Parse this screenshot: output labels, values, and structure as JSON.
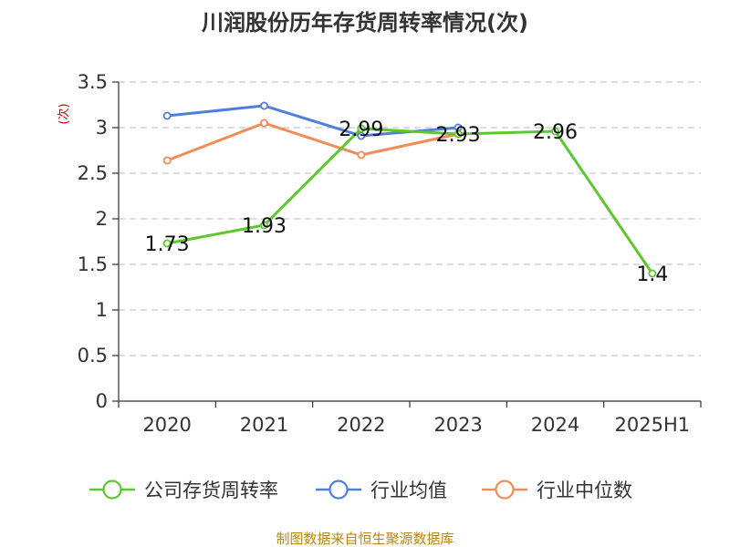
{
  "chart_data": {
    "type": "line",
    "title": "川润股份历年存货周转率情况(次)",
    "ylabel": "(次)",
    "xlabel": "",
    "categories": [
      "2020",
      "2021",
      "2022",
      "2023",
      "2024",
      "2025H1"
    ],
    "ylim": [
      0,
      3.5
    ],
    "yticks": [
      "0",
      "0.5",
      "1",
      "1.5",
      "2",
      "2.5",
      "3",
      "3.5"
    ],
    "grid": "horizontal-dashed",
    "legend_position": "bottom",
    "series": [
      {
        "name": "公司存货周转率",
        "color": "#5cc72e",
        "values": [
          1.73,
          1.93,
          2.99,
          2.93,
          2.96,
          1.4
        ],
        "labels": [
          "1.73",
          "1.93",
          "2.99",
          "2.93",
          "2.96",
          "1.4"
        ]
      },
      {
        "name": "行业均值",
        "color": "#4f7fdc",
        "values": [
          3.13,
          3.24,
          2.91,
          3.0,
          null,
          null
        ]
      },
      {
        "name": "行业中位数",
        "color": "#f28c56",
        "values": [
          2.64,
          3.05,
          2.7,
          2.93,
          null,
          null
        ]
      }
    ]
  },
  "source": "制图数据来自恒生聚源数据库"
}
